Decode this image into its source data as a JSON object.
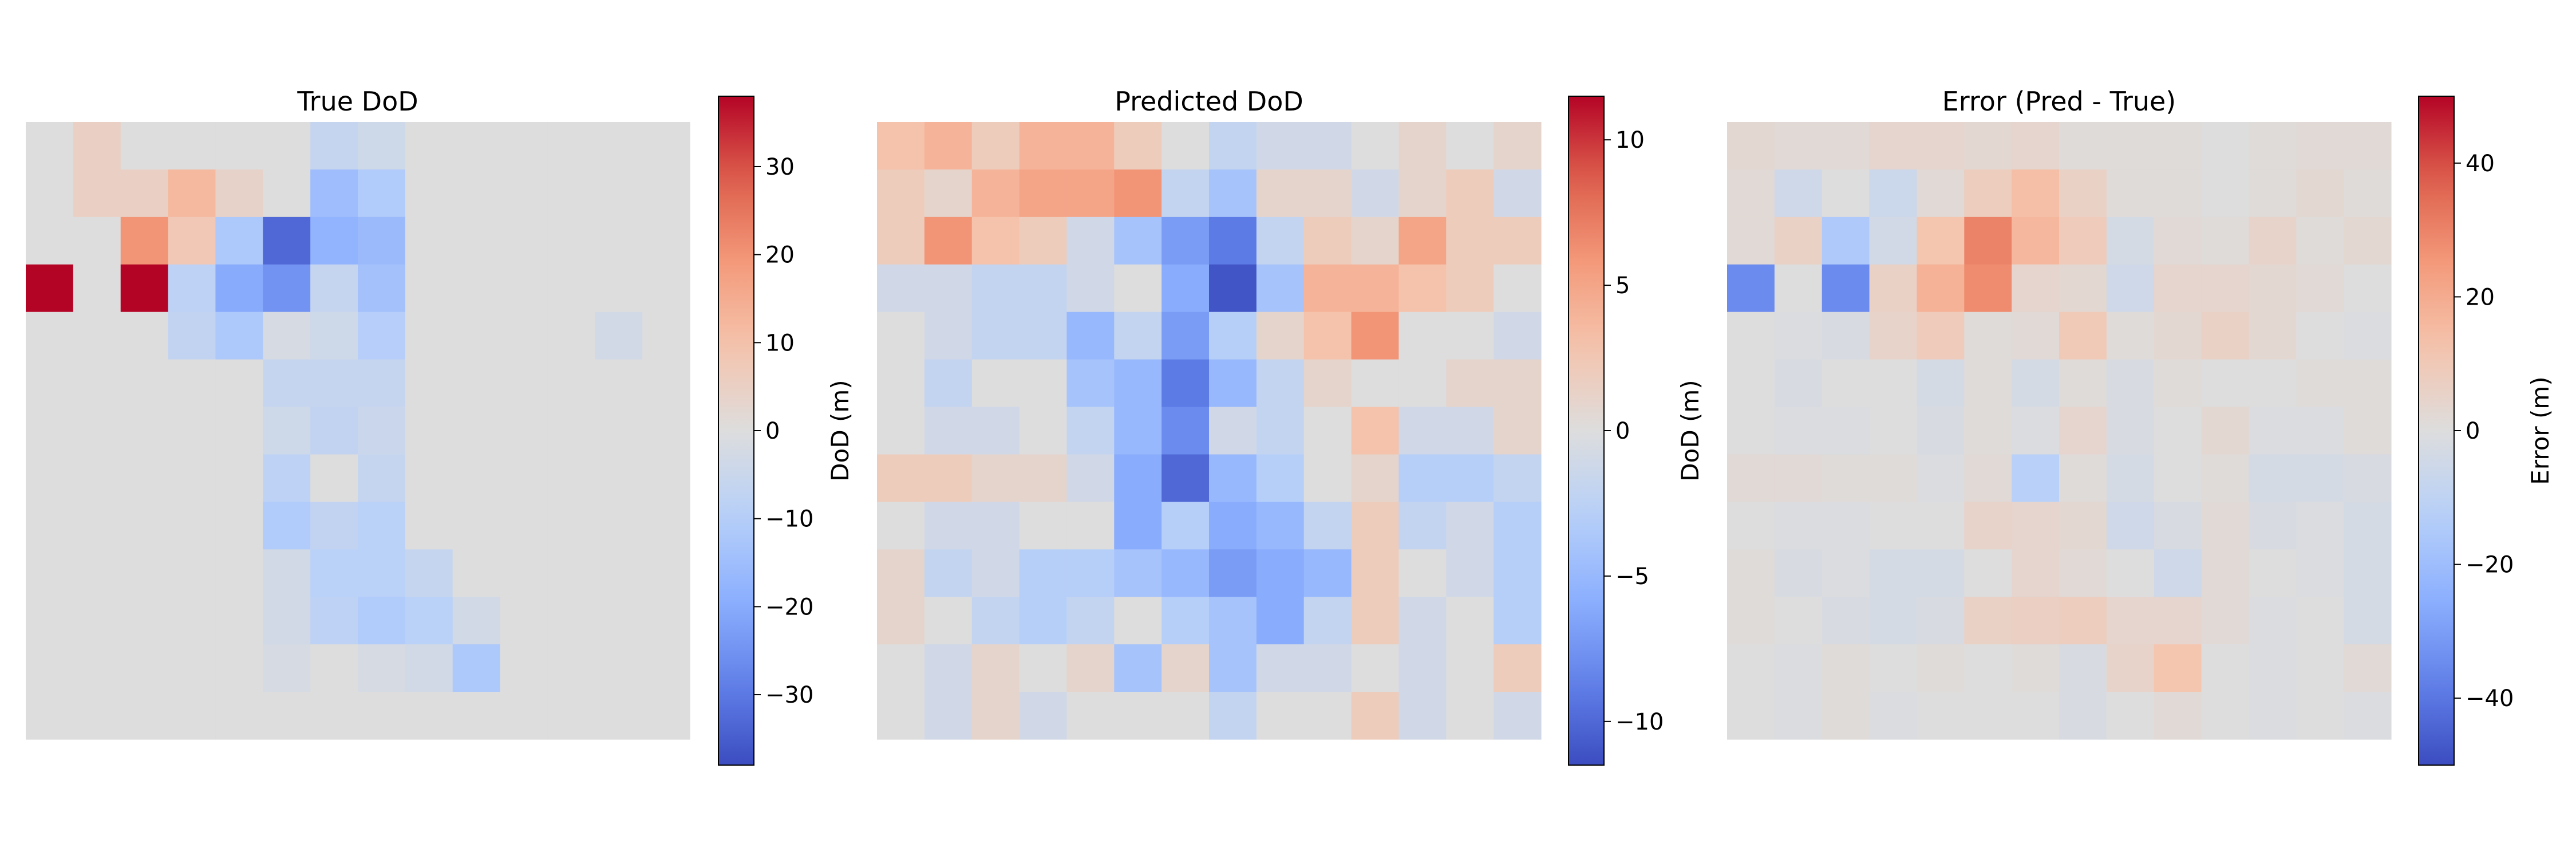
{
  "chart_data": [
    {
      "type": "heatmap",
      "title": "True DoD",
      "colorbar_label": "DoD (m)",
      "colormap": "coolwarm",
      "vmin": -38,
      "vmax": 38,
      "colorbar_ticks": [
        -30,
        -20,
        -10,
        0,
        10,
        20,
        30
      ],
      "colorbar_tick_labels": [
        "−30",
        "−20",
        "−10",
        "0",
        "10",
        "20",
        "30"
      ],
      "rows": 13,
      "cols": 14,
      "values": [
        [
          0,
          5,
          0,
          0,
          0,
          0,
          -6,
          -4,
          0,
          0,
          0,
          0,
          0,
          0
        ],
        [
          0,
          5,
          5,
          12,
          4,
          0,
          -15,
          -11,
          0,
          0,
          0,
          0,
          0,
          0
        ],
        [
          0,
          0,
          20,
          8,
          -12,
          -33,
          -18,
          -16,
          0,
          0,
          0,
          0,
          0,
          0
        ],
        [
          38,
          0,
          38,
          -8,
          -20,
          -25,
          -6,
          -14,
          0,
          0,
          0,
          0,
          0,
          0
        ],
        [
          0,
          0,
          0,
          -7,
          -12,
          -2,
          -4,
          -10,
          0,
          0,
          0,
          0,
          -3,
          0
        ],
        [
          0,
          0,
          0,
          0,
          0,
          -6,
          -6,
          -6,
          0,
          0,
          0,
          0,
          0,
          0
        ],
        [
          0,
          0,
          0,
          0,
          0,
          -4,
          -7,
          -5,
          0,
          0,
          0,
          0,
          0,
          0
        ],
        [
          0,
          0,
          0,
          0,
          0,
          -8,
          0,
          -6,
          0,
          0,
          0,
          0,
          0,
          0
        ],
        [
          0,
          0,
          0,
          0,
          0,
          -11,
          -7,
          -9,
          0,
          0,
          0,
          0,
          0,
          0
        ],
        [
          0,
          0,
          0,
          0,
          0,
          -3,
          -9,
          -9,
          -6,
          0,
          0,
          0,
          0,
          0
        ],
        [
          0,
          0,
          0,
          0,
          0,
          -3,
          -8,
          -11,
          -9,
          -3,
          0,
          0,
          0,
          0
        ],
        [
          0,
          0,
          0,
          0,
          0,
          -2,
          0,
          -2,
          -3,
          -12,
          0,
          0,
          0,
          0
        ],
        [
          0,
          0,
          0,
          0,
          0,
          0,
          0,
          0,
          0,
          0,
          0,
          0,
          0,
          0
        ]
      ]
    },
    {
      "type": "heatmap",
      "title": "Predicted DoD",
      "colorbar_label": "DoD (m)",
      "colormap": "coolwarm",
      "vmin": -11.5,
      "vmax": 11.5,
      "colorbar_ticks": [
        -10,
        -5,
        0,
        5,
        10
      ],
      "colorbar_tick_labels": [
        "−10",
        "−5",
        "0",
        "5",
        "10"
      ],
      "rows": 13,
      "cols": 14,
      "values": [
        [
          3,
          4,
          2,
          4,
          4,
          2,
          0,
          -2,
          -1,
          -1,
          0,
          1,
          0,
          1
        ],
        [
          2,
          1,
          4,
          5,
          5,
          6,
          -2,
          -4,
          1,
          1,
          -1,
          1,
          2,
          -1
        ],
        [
          2,
          6,
          3,
          2,
          -1,
          -4,
          -7,
          -9,
          -2,
          2,
          1,
          5,
          2,
          2
        ],
        [
          -1,
          -1,
          -2,
          -2,
          -1,
          0,
          -6,
          -11,
          -4,
          4,
          4,
          3,
          2,
          0
        ],
        [
          0,
          -1,
          -2,
          -2,
          -5,
          -2,
          -7,
          -3,
          1,
          3,
          6,
          0,
          0,
          -1
        ],
        [
          0,
          -2,
          0,
          0,
          -4,
          -5,
          -9,
          -5,
          -2,
          1,
          0,
          0,
          1,
          1
        ],
        [
          0,
          -1,
          -1,
          0,
          -2,
          -5,
          -8,
          -1,
          -2,
          0,
          3,
          -1,
          -1,
          1
        ],
        [
          2,
          2,
          1,
          1,
          -1,
          -6,
          -10,
          -5,
          -3,
          0,
          1,
          -3,
          -3,
          -2
        ],
        [
          0,
          -1,
          -1,
          0,
          0,
          -6,
          -3,
          -6,
          -5,
          -2,
          2,
          -2,
          -1,
          -3
        ],
        [
          1,
          -2,
          -1,
          -3,
          -3,
          -4,
          -5,
          -7,
          -6,
          -5,
          2,
          0,
          -1,
          -3
        ],
        [
          1,
          0,
          -2,
          -3,
          -2,
          0,
          -3,
          -4,
          -6,
          -2,
          2,
          -1,
          0,
          -3
        ],
        [
          0,
          -1,
          1,
          0,
          1,
          -4,
          1,
          -4,
          -1,
          -1,
          0,
          -1,
          0,
          2
        ],
        [
          0,
          -1,
          1,
          -1,
          0,
          0,
          0,
          -2,
          0,
          0,
          2,
          -1,
          0,
          -1
        ]
      ]
    },
    {
      "type": "heatmap",
      "title": "Error (Pred - True)",
      "colorbar_label": "Error (m)",
      "colormap": "coolwarm",
      "vmin": -50,
      "vmax": 50,
      "colorbar_ticks": [
        -40,
        -20,
        0,
        20,
        40
      ],
      "colorbar_tick_labels": [
        "−40",
        "−20",
        "0",
        "20",
        "40"
      ],
      "rows": 13,
      "cols": 14,
      "values": [
        [
          3,
          2,
          2,
          4,
          4,
          3,
          4,
          1,
          1,
          1,
          0,
          1,
          2,
          2
        ],
        [
          2,
          -5,
          0,
          -6,
          2,
          8,
          14,
          6,
          1,
          1,
          0,
          1,
          3,
          1
        ],
        [
          2,
          6,
          -15,
          -4,
          12,
          30,
          16,
          9,
          -3,
          2,
          1,
          5,
          1,
          3
        ],
        [
          -35,
          0,
          -35,
          6,
          18,
          28,
          4,
          3,
          -5,
          4,
          4,
          3,
          2,
          0
        ],
        [
          0,
          -1,
          -2,
          5,
          9,
          1,
          2,
          10,
          1,
          3,
          6,
          3,
          0,
          -1
        ],
        [
          0,
          -2,
          0,
          0,
          -3,
          1,
          -3,
          1,
          -2,
          1,
          0,
          0,
          1,
          1
        ],
        [
          0,
          -1,
          -1,
          0,
          -2,
          1,
          -1,
          4,
          -2,
          0,
          3,
          -1,
          -1,
          1
        ],
        [
          2,
          2,
          1,
          1,
          -1,
          2,
          -12,
          1,
          -3,
          0,
          1,
          -3,
          -3,
          -2
        ],
        [
          0,
          -1,
          -1,
          0,
          0,
          5,
          4,
          3,
          -5,
          -2,
          2,
          -2,
          -1,
          -3
        ],
        [
          1,
          -2,
          -1,
          -3,
          -3,
          0,
          4,
          2,
          0,
          -5,
          2,
          0,
          -1,
          -3
        ],
        [
          1,
          0,
          -2,
          -3,
          -2,
          6,
          7,
          8,
          4,
          4,
          2,
          -1,
          0,
          -3
        ],
        [
          0,
          -1,
          1,
          0,
          1,
          0,
          1,
          -2,
          5,
          12,
          0,
          -1,
          0,
          2
        ],
        [
          0,
          -1,
          1,
          -1,
          0,
          0,
          0,
          -2,
          0,
          2,
          0,
          -1,
          0,
          -1
        ]
      ]
    }
  ]
}
